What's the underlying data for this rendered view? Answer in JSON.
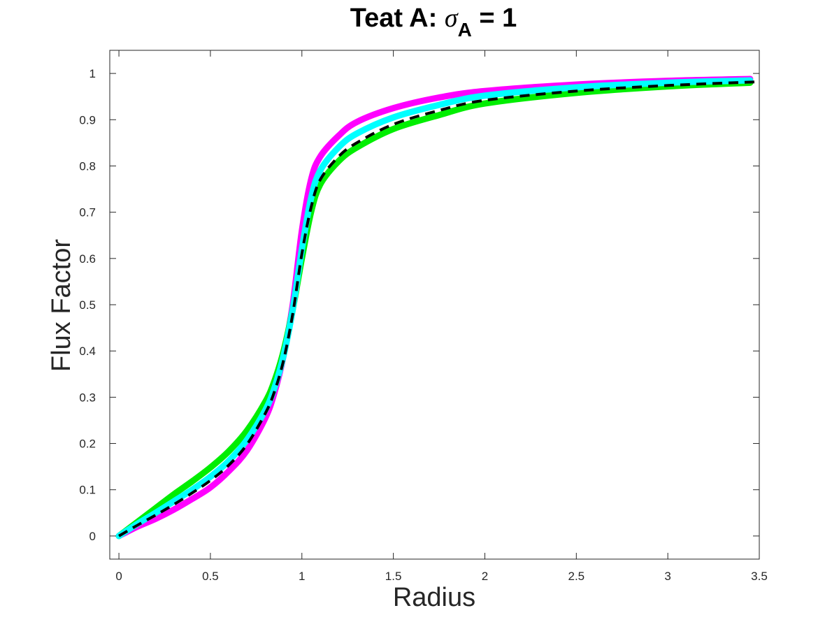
{
  "chart_data": {
    "type": "line",
    "title": {
      "prefix": "Teat A: ",
      "symbol": "σ",
      "subscript": "A",
      "suffix": " = 1"
    },
    "xlabel": "Radius",
    "ylabel": "Flux Factor",
    "xlim": [
      -0.05,
      3.5
    ],
    "ylim": [
      -0.05,
      1.05
    ],
    "xticks": [
      0,
      0.5,
      1,
      1.5,
      2,
      2.5,
      3,
      3.5
    ],
    "xtick_labels": [
      "0",
      "0.5",
      "1",
      "1.5",
      "2",
      "2.5",
      "3",
      "3.5"
    ],
    "yticks": [
      0,
      0.1,
      0.2,
      0.3,
      0.4,
      0.5,
      0.6,
      0.7,
      0.8,
      0.9,
      1
    ],
    "ytick_labels": [
      "0",
      "0.1",
      "0.2",
      "0.3",
      "0.4",
      "0.5",
      "0.6",
      "0.7",
      "0.8",
      "0.9",
      "1"
    ],
    "grid": false,
    "box": true,
    "series": [
      {
        "color": "#ff00ff",
        "style": "solid-thick",
        "x": [
          0,
          0.1,
          0.2,
          0.3,
          0.4,
          0.5,
          0.6,
          0.7,
          0.8,
          0.85,
          0.9,
          0.95,
          1.0,
          1.05,
          1.1,
          1.2,
          1.3,
          1.5,
          1.75,
          2.0,
          2.5,
          3.0,
          3.45
        ],
        "y": [
          0.0,
          0.02,
          0.037,
          0.057,
          0.08,
          0.105,
          0.14,
          0.185,
          0.255,
          0.31,
          0.39,
          0.5,
          0.66,
          0.77,
          0.82,
          0.865,
          0.895,
          0.925,
          0.948,
          0.962,
          0.976,
          0.984,
          0.988
        ]
      },
      {
        "color": "#00ee00",
        "style": "solid-thick",
        "x": [
          0,
          0.1,
          0.2,
          0.3,
          0.4,
          0.5,
          0.6,
          0.7,
          0.8,
          0.85,
          0.9,
          0.95,
          1.0,
          1.05,
          1.1,
          1.2,
          1.3,
          1.5,
          1.75,
          2.0,
          2.5,
          3.0,
          3.45
        ],
        "y": [
          0.0,
          0.03,
          0.06,
          0.09,
          0.118,
          0.148,
          0.183,
          0.228,
          0.29,
          0.335,
          0.4,
          0.49,
          0.6,
          0.7,
          0.76,
          0.81,
          0.84,
          0.88,
          0.91,
          0.935,
          0.958,
          0.972,
          0.98
        ]
      },
      {
        "color": "#00ffff",
        "style": "solid-thick",
        "x": [
          0,
          0.1,
          0.2,
          0.3,
          0.4,
          0.5,
          0.6,
          0.7,
          0.8,
          0.85,
          0.9,
          0.95,
          1.0,
          1.05,
          1.1,
          1.2,
          1.3,
          1.5,
          1.75,
          2.0,
          2.5,
          3.0,
          3.45
        ],
        "y": [
          0.0,
          0.026,
          0.05,
          0.075,
          0.1,
          0.128,
          0.162,
          0.208,
          0.272,
          0.32,
          0.39,
          0.49,
          0.62,
          0.73,
          0.79,
          0.84,
          0.87,
          0.905,
          0.932,
          0.952,
          0.97,
          0.98,
          0.985
        ]
      },
      {
        "color": "#000000",
        "style": "dashed",
        "x": [
          0,
          0.1,
          0.2,
          0.3,
          0.4,
          0.5,
          0.6,
          0.7,
          0.8,
          0.85,
          0.9,
          0.95,
          1.0,
          1.05,
          1.1,
          1.2,
          1.3,
          1.5,
          1.75,
          2.0,
          2.5,
          3.0,
          3.5
        ],
        "y": [
          0.0,
          0.023,
          0.045,
          0.068,
          0.093,
          0.12,
          0.153,
          0.198,
          0.265,
          0.312,
          0.38,
          0.48,
          0.61,
          0.71,
          0.77,
          0.82,
          0.85,
          0.89,
          0.92,
          0.942,
          0.962,
          0.974,
          0.982
        ]
      }
    ]
  }
}
